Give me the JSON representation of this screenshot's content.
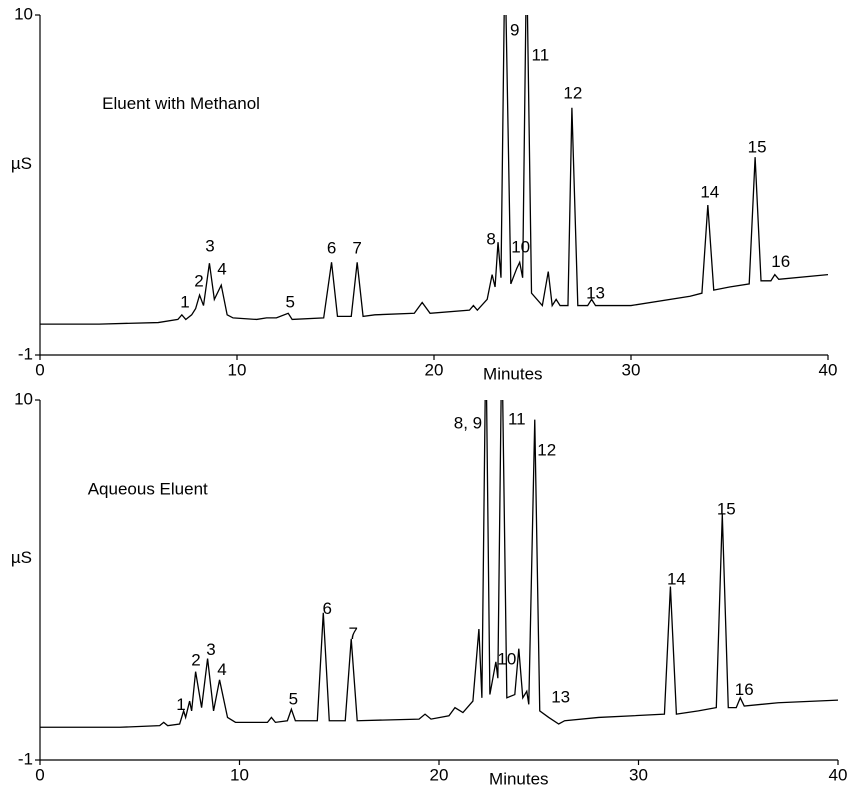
{
  "chart_data": [
    {
      "type": "line",
      "xlabel": "Minutes",
      "ylabel": "µS",
      "color": "#000000",
      "xlim": [
        0,
        40
      ],
      "ylim": [
        -1,
        10
      ],
      "xticks": [
        0,
        10,
        20,
        30,
        40
      ],
      "yticks": [
        -1,
        10
      ],
      "x": [
        0,
        3,
        6,
        7.0,
        7.2,
        7.4,
        7.7,
        7.9,
        8.1,
        8.3,
        8.6,
        8.85,
        9.2,
        9.5,
        9.8,
        11,
        11.5,
        12,
        12.6,
        12.8,
        14.4,
        14.8,
        15.1,
        15.8,
        16.1,
        16.4,
        17,
        19,
        19.4,
        19.8,
        21.8,
        22.0,
        22.2,
        22.7,
        22.95,
        23.1,
        23.25,
        23.4,
        23.6,
        23.9,
        24.2,
        24.35,
        24.5,
        24.7,
        24.95,
        25.5,
        25.8,
        26.0,
        26.2,
        26.4,
        26.8,
        27.0,
        27.3,
        27.8,
        28.0,
        28.2,
        30,
        33,
        33.6,
        33.9,
        34.2,
        35,
        36.0,
        36.3,
        36.6,
        37.1,
        37.3,
        37.5,
        40
      ],
      "values": [
        0,
        0,
        0.05,
        0.15,
        0.3,
        0.15,
        0.3,
        0.5,
        0.94,
        0.6,
        1.97,
        0.8,
        1.26,
        0.3,
        0.2,
        0.15,
        0.2,
        0.2,
        0.35,
        0.15,
        0.2,
        2.0,
        0.25,
        0.25,
        2.0,
        0.25,
        0.3,
        0.35,
        0.7,
        0.35,
        0.45,
        0.6,
        0.45,
        0.8,
        1.6,
        1.2,
        2.65,
        1.5,
        12,
        1.3,
        1.8,
        2.0,
        1.5,
        12,
        1.0,
        0.6,
        1.7,
        0.6,
        0.8,
        0.6,
        0.6,
        7.0,
        0.6,
        0.6,
        0.8,
        0.6,
        0.6,
        0.9,
        1.0,
        3.85,
        1.1,
        1.2,
        1.3,
        5.4,
        1.4,
        1.4,
        1.6,
        1.45,
        1.6
      ],
      "annotations": [
        {
          "text": "Eluent with Methanol",
          "x": 7.16,
          "y": 7.1
        },
        {
          "text": "1",
          "x": 7.36,
          "y": 0.68
        },
        {
          "text": "2",
          "x": 8.07,
          "y": 1.36
        },
        {
          "text": "3",
          "x": 8.63,
          "y": 2.5
        },
        {
          "text": "4",
          "x": 9.24,
          "y": 1.75
        },
        {
          "text": "5",
          "x": 12.7,
          "y": 0.68
        },
        {
          "text": "6",
          "x": 14.8,
          "y": 2.43
        },
        {
          "text": "7",
          "x": 16.1,
          "y": 2.43
        },
        {
          "text": "8",
          "x": 22.9,
          "y": 2.72
        },
        {
          "text": "9",
          "x": 24.1,
          "y": 9.48
        },
        {
          "text": "10",
          "x": 24.4,
          "y": 2.46
        },
        {
          "text": "11",
          "x": 25.4,
          "y": 8.67
        },
        {
          "text": "12",
          "x": 27.05,
          "y": 7.44
        },
        {
          "text": "13",
          "x": 28.2,
          "y": 0.97
        },
        {
          "text": "14",
          "x": 34.0,
          "y": 4.24
        },
        {
          "text": "15",
          "x": 36.4,
          "y": 5.7
        },
        {
          "text": "16",
          "x": 37.6,
          "y": 2.0
        }
      ]
    },
    {
      "type": "line",
      "xlabel": "Minutes",
      "ylabel": "µS",
      "color": "#000000",
      "xlim": [
        0,
        40
      ],
      "ylim": [
        -1,
        10
      ],
      "xticks": [
        0,
        10,
        20,
        30,
        40
      ],
      "yticks": [
        -1,
        10
      ],
      "x": [
        0,
        4,
        6,
        6.2,
        6.4,
        7.0,
        7.2,
        7.3,
        7.5,
        7.6,
        7.8,
        8.1,
        8.4,
        8.7,
        9.0,
        9.4,
        9.8,
        11.4,
        11.6,
        11.8,
        12.4,
        12.6,
        12.8,
        13.9,
        14.2,
        14.5,
        15.3,
        15.6,
        15.9,
        19,
        19.3,
        19.6,
        20.5,
        20.8,
        21.2,
        21.7,
        22.0,
        22.15,
        22.35,
        22.55,
        22.7,
        22.85,
        22.95,
        23.15,
        23.4,
        23.8,
        24.0,
        24.2,
        24.4,
        24.5,
        24.8,
        25.05,
        25.5,
        26,
        26.3,
        28,
        31.3,
        31.6,
        31.9,
        33,
        33.9,
        34.2,
        34.5,
        34.9,
        35.1,
        35.3,
        37,
        40
      ],
      "values": [
        0,
        0,
        0.05,
        0.15,
        0.05,
        0.1,
        0.5,
        0.3,
        0.8,
        0.5,
        1.7,
        0.6,
        2.1,
        0.5,
        1.45,
        0.3,
        0.15,
        0.15,
        0.3,
        0.15,
        0.2,
        0.55,
        0.2,
        0.2,
        3.5,
        0.2,
        0.2,
        2.7,
        0.2,
        0.25,
        0.4,
        0.25,
        0.35,
        0.6,
        0.45,
        0.8,
        3.0,
        0.9,
        12,
        1.0,
        1.5,
        2.0,
        1.5,
        12,
        0.9,
        1.0,
        2.4,
        0.9,
        1.1,
        0.7,
        9.4,
        0.5,
        0.3,
        0.1,
        0.2,
        0.3,
        0.4,
        4.3,
        0.4,
        0.5,
        0.6,
        6.5,
        0.6,
        0.6,
        0.9,
        0.65,
        0.75,
        0.83
      ],
      "annotations": [
        {
          "text": "Aqueous Eluent",
          "x": 5.4,
          "y": 7.25
        },
        {
          "text": "1",
          "x": 7.07,
          "y": 0.67
        },
        {
          "text": "2",
          "x": 7.82,
          "y": 2.02
        },
        {
          "text": "3",
          "x": 8.57,
          "y": 2.35
        },
        {
          "text": "4",
          "x": 9.12,
          "y": 1.74
        },
        {
          "text": "5",
          "x": 12.7,
          "y": 0.83
        },
        {
          "text": "6",
          "x": 14.4,
          "y": 3.6
        },
        {
          "text": "7",
          "x": 15.7,
          "y": 2.84
        },
        {
          "text": "8, 9",
          "x": 21.45,
          "y": 9.27
        },
        {
          "text": "10",
          "x": 23.4,
          "y": 2.05
        },
        {
          "text": "11",
          "x": 23.9,
          "y": 9.39
        },
        {
          "text": "12",
          "x": 25.4,
          "y": 8.44
        },
        {
          "text": "13",
          "x": 26.1,
          "y": 0.89
        },
        {
          "text": "14",
          "x": 31.9,
          "y": 4.5
        },
        {
          "text": "15",
          "x": 34.4,
          "y": 6.64
        },
        {
          "text": "16",
          "x": 35.3,
          "y": 1.13
        }
      ]
    }
  ]
}
